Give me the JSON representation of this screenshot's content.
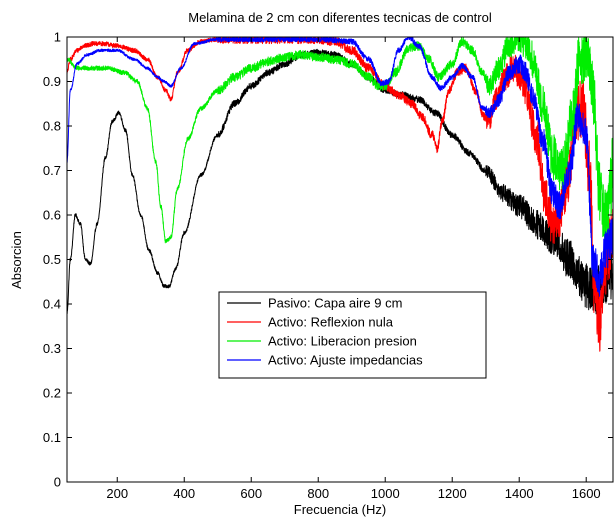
{
  "chart_data": {
    "type": "line",
    "title": "Melamina de 2 cm con diferentes tecnicas de control",
    "xlabel": "Frecuencia (Hz)",
    "ylabel": "Absorcion",
    "xlim": [
      50,
      1680
    ],
    "ylim": [
      0,
      1
    ],
    "xticks": [
      200,
      400,
      600,
      800,
      1000,
      1200,
      1400,
      1600
    ],
    "yticks": [
      0,
      0.1,
      0.2,
      0.3,
      0.4,
      0.5,
      0.6,
      0.7,
      0.8,
      0.9,
      1
    ],
    "ytick_labels": [
      "0",
      "0.1",
      "0.2",
      "0.3",
      "0.4",
      "0.5",
      "0.6",
      "0.7",
      "0.8",
      "0.9",
      "1"
    ],
    "grid": false,
    "legend_position": "lower-center",
    "series": [
      {
        "name": "Pasivo: Capa aire 9 cm",
        "color": "#000000",
        "noise": 0.015,
        "x": [
          50,
          60,
          75,
          90,
          105,
          120,
          140,
          165,
          185,
          205,
          225,
          245,
          270,
          295,
          320,
          340,
          355,
          375,
          400,
          450,
          500,
          550,
          600,
          650,
          700,
          750,
          800,
          850,
          900,
          950,
          1000,
          1050,
          1100,
          1150,
          1200,
          1250,
          1300,
          1350,
          1400,
          1450,
          1500,
          1550,
          1580,
          1600,
          1625,
          1650,
          1680
        ],
        "y": [
          0.38,
          0.5,
          0.6,
          0.58,
          0.5,
          0.49,
          0.58,
          0.73,
          0.81,
          0.83,
          0.79,
          0.69,
          0.6,
          0.52,
          0.47,
          0.44,
          0.44,
          0.48,
          0.56,
          0.69,
          0.78,
          0.85,
          0.89,
          0.92,
          0.94,
          0.96,
          0.965,
          0.96,
          0.94,
          0.91,
          0.88,
          0.87,
          0.86,
          0.83,
          0.78,
          0.74,
          0.7,
          0.65,
          0.62,
          0.58,
          0.55,
          0.5,
          0.46,
          0.44,
          0.43,
          0.45,
          0.46
        ]
      },
      {
        "name": "Activo: Reflexion nula",
        "color": "#ff0000",
        "noise": 0.02,
        "x": [
          50,
          60,
          80,
          100,
          130,
          160,
          200,
          250,
          290,
          320,
          345,
          360,
          380,
          410,
          450,
          500,
          600,
          700,
          800,
          850,
          900,
          950,
          1000,
          1040,
          1080,
          1110,
          1140,
          1155,
          1170,
          1190,
          1215,
          1240,
          1270,
          1295,
          1310,
          1330,
          1360,
          1380,
          1400,
          1420,
          1450,
          1480,
          1500,
          1520,
          1545,
          1570,
          1590,
          1610,
          1625,
          1640,
          1655,
          1680
        ],
        "y": [
          0.92,
          0.95,
          0.97,
          0.98,
          0.985,
          0.985,
          0.98,
          0.97,
          0.95,
          0.91,
          0.88,
          0.86,
          0.92,
          0.97,
          0.99,
          0.995,
          0.995,
          0.995,
          0.995,
          0.99,
          0.97,
          0.93,
          0.89,
          0.87,
          0.85,
          0.82,
          0.78,
          0.75,
          0.81,
          0.88,
          0.92,
          0.93,
          0.88,
          0.82,
          0.81,
          0.86,
          0.91,
          0.93,
          0.92,
          0.88,
          0.78,
          0.63,
          0.58,
          0.6,
          0.68,
          0.83,
          0.84,
          0.7,
          0.44,
          0.36,
          0.48,
          0.55
        ]
      },
      {
        "name": "Activo: Liberacion presion",
        "color": "#00ee00",
        "noise": 0.02,
        "x": [
          50,
          80,
          120,
          170,
          220,
          260,
          290,
          315,
          330,
          345,
          360,
          380,
          410,
          450,
          500,
          550,
          600,
          650,
          700,
          750,
          800,
          850,
          900,
          950,
          980,
          1000,
          1030,
          1070,
          1100,
          1130,
          1160,
          1200,
          1230,
          1260,
          1290,
          1310,
          1340,
          1370,
          1400,
          1420,
          1440,
          1470,
          1500,
          1530,
          1560,
          1580,
          1600,
          1620,
          1640,
          1660,
          1680
        ],
        "y": [
          0.95,
          0.93,
          0.93,
          0.93,
          0.92,
          0.9,
          0.84,
          0.72,
          0.62,
          0.54,
          0.55,
          0.66,
          0.77,
          0.84,
          0.88,
          0.91,
          0.93,
          0.945,
          0.955,
          0.96,
          0.955,
          0.95,
          0.94,
          0.91,
          0.89,
          0.89,
          0.92,
          0.975,
          0.98,
          0.95,
          0.91,
          0.94,
          0.99,
          0.97,
          0.92,
          0.89,
          0.93,
          0.985,
          1.0,
          0.99,
          0.95,
          0.85,
          0.73,
          0.7,
          0.82,
          0.95,
          0.97,
          0.88,
          0.66,
          0.58,
          0.7
        ]
      },
      {
        "name": "Activo: Ajuste impedancias",
        "color": "#0000ff",
        "noise": 0.012,
        "x": [
          50,
          60,
          80,
          110,
          150,
          200,
          250,
          290,
          320,
          340,
          360,
          390,
          430,
          500,
          600,
          700,
          800,
          900,
          950,
          990,
          1010,
          1040,
          1070,
          1100,
          1140,
          1165,
          1200,
          1230,
          1260,
          1290,
          1310,
          1340,
          1370,
          1400,
          1420,
          1440,
          1470,
          1500,
          1520,
          1550,
          1575,
          1600,
          1620,
          1640,
          1660,
          1680
        ],
        "y": [
          0.72,
          0.88,
          0.94,
          0.96,
          0.97,
          0.97,
          0.95,
          0.93,
          0.91,
          0.9,
          0.89,
          0.93,
          0.985,
          0.995,
          0.995,
          0.995,
          0.995,
          0.99,
          0.95,
          0.895,
          0.9,
          0.97,
          1.0,
          0.98,
          0.91,
          0.885,
          0.91,
          0.935,
          0.91,
          0.84,
          0.83,
          0.86,
          0.92,
          0.94,
          0.92,
          0.87,
          0.77,
          0.65,
          0.62,
          0.7,
          0.82,
          0.78,
          0.5,
          0.46,
          0.52,
          0.55
        ]
      }
    ]
  }
}
